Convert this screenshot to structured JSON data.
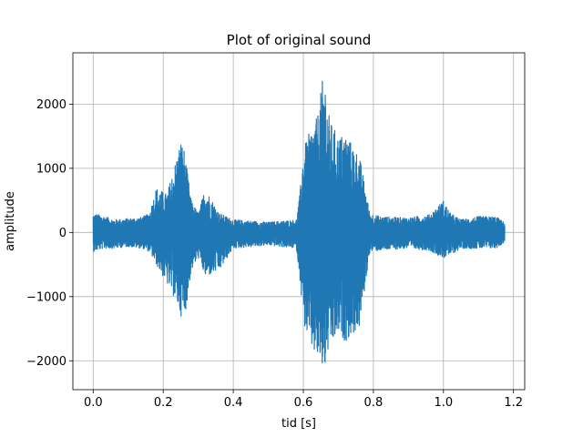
{
  "chart_data": {
    "type": "line",
    "title": "Plot of original sound",
    "xlabel": "tid [s]",
    "ylabel": "amplitude",
    "xlim": [
      -0.058,
      1.232
    ],
    "ylim": [
      -2450,
      2800
    ],
    "xticks": [
      0.0,
      0.2,
      0.4,
      0.6,
      0.8,
      1.0,
      1.2
    ],
    "xtick_labels": [
      "0.0",
      "0.2",
      "0.4",
      "0.6",
      "0.8",
      "1.0",
      "1.2"
    ],
    "yticks": [
      -2000,
      -1000,
      0,
      1000,
      2000
    ],
    "ytick_labels": [
      "−2000",
      "−1000",
      "0",
      "1000",
      "2000"
    ],
    "grid": true,
    "series": [
      {
        "color": "#1f77b4",
        "x_range": [
          0.0,
          1.175
        ],
        "envelope": {
          "t": [
            0.0,
            0.03,
            0.06,
            0.1,
            0.14,
            0.16,
            0.18,
            0.21,
            0.23,
            0.25,
            0.26,
            0.27,
            0.28,
            0.3,
            0.32,
            0.36,
            0.4,
            0.5,
            0.58,
            0.59,
            0.6,
            0.62,
            0.64,
            0.66,
            0.67,
            0.68,
            0.7,
            0.72,
            0.76,
            0.78,
            0.79,
            0.82,
            0.9,
            0.96,
            1.0,
            1.02,
            1.05,
            1.1,
            1.15,
            1.175
          ],
          "upper": [
            300,
            260,
            200,
            220,
            240,
            300,
            700,
            600,
            1000,
            1450,
            1300,
            900,
            500,
            300,
            700,
            300,
            200,
            160,
            200,
            600,
            1300,
            1600,
            1800,
            2580,
            1900,
            1700,
            1500,
            1550,
            1200,
            600,
            300,
            250,
            230,
            280,
            500,
            300,
            200,
            250,
            250,
            150
          ],
          "lower": [
            -300,
            -250,
            -250,
            -220,
            -250,
            -300,
            -500,
            -800,
            -1000,
            -1300,
            -1350,
            -1000,
            -600,
            -400,
            -700,
            -600,
            -250,
            -200,
            -250,
            -700,
            -1400,
            -1800,
            -2000,
            -2200,
            -1900,
            -1800,
            -1600,
            -1700,
            -1500,
            -700,
            -300,
            -280,
            -250,
            -280,
            -400,
            -350,
            -250,
            -250,
            -250,
            -150
          ]
        }
      }
    ]
  }
}
